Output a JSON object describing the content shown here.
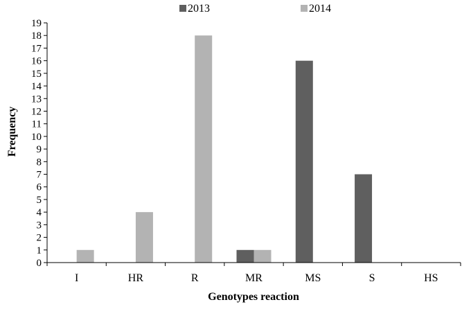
{
  "chart_data": {
    "type": "bar",
    "title": "",
    "xlabel": "Genotypes reaction",
    "ylabel": "Frequency",
    "ylim": [
      0,
      19
    ],
    "yticks": [
      0,
      1,
      2,
      3,
      4,
      5,
      6,
      7,
      8,
      9,
      10,
      11,
      12,
      13,
      14,
      15,
      16,
      17,
      18,
      19
    ],
    "categories": [
      "I",
      "HR",
      "R",
      "MR",
      "MS",
      "S",
      "HS"
    ],
    "series": [
      {
        "name": "2013",
        "color": "#5f5f5f",
        "values": [
          0,
          0,
          0,
          1,
          16,
          7,
          0
        ]
      },
      {
        "name": "2014",
        "color": "#b3b3b3",
        "values": [
          1,
          4,
          18,
          1,
          0,
          0,
          0
        ]
      }
    ],
    "grid": false,
    "legend_position": "top"
  }
}
